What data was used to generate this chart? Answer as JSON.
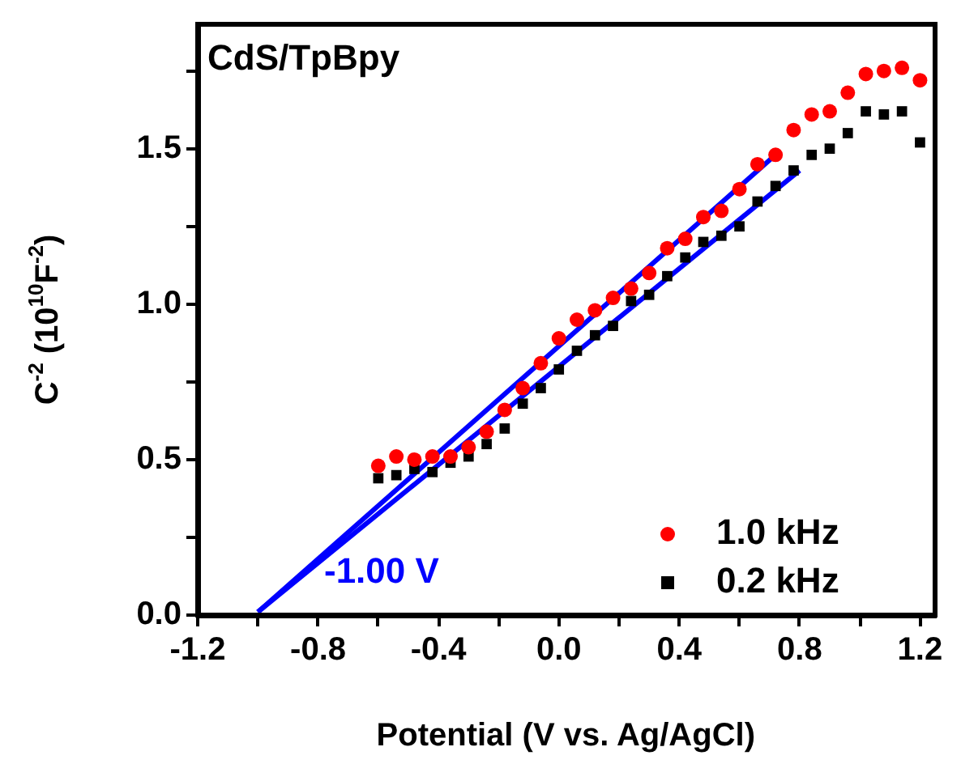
{
  "chart_data": {
    "type": "scatter",
    "title": "CdS/TpBpy",
    "xlabel": "Potential (V vs. Ag/AgCl)",
    "ylabel": "C$^{-2}$ (10$^{10}$F$^{-2}$)",
    "annotations": [
      "-1.00 V"
    ],
    "x": [
      -0.6,
      -0.54,
      -0.48,
      -0.42,
      -0.36,
      -0.3,
      -0.24,
      -0.18,
      -0.12,
      -0.06,
      0.0,
      0.06,
      0.12,
      0.18,
      0.24,
      0.3,
      0.36,
      0.42,
      0.48,
      0.54,
      0.6,
      0.66,
      0.72,
      0.78,
      0.84,
      0.9,
      0.96,
      1.02,
      1.08,
      1.14,
      1.2
    ],
    "series": [
      {
        "name": "1.0 kHz",
        "color": "#ff0000",
        "marker": "circle",
        "values": [
          0.48,
          0.51,
          0.5,
          0.51,
          0.51,
          0.54,
          0.59,
          0.66,
          0.73,
          0.81,
          0.89,
          0.95,
          0.98,
          1.02,
          1.05,
          1.1,
          1.18,
          1.21,
          1.28,
          1.3,
          1.37,
          1.45,
          1.48,
          1.56,
          1.61,
          1.62,
          1.68,
          1.74,
          1.75,
          1.76,
          1.72
        ]
      },
      {
        "name": "0.2 kHz",
        "color": "#000000",
        "marker": "square",
        "values": [
          0.44,
          0.45,
          0.47,
          0.46,
          0.49,
          0.51,
          0.55,
          0.6,
          0.68,
          0.73,
          0.79,
          0.85,
          0.9,
          0.93,
          1.01,
          1.03,
          1.09,
          1.15,
          1.2,
          1.22,
          1.25,
          1.33,
          1.38,
          1.43,
          1.48,
          1.5,
          1.55,
          1.62,
          1.61,
          1.62,
          1.52
        ]
      },
      {
        "type": "line",
        "color": "#0000ff",
        "marker": "none",
        "x": [
          -1.0,
          0.72
        ],
        "values": [
          0.01,
          1.48
        ]
      },
      {
        "type": "line",
        "color": "#0000ff",
        "marker": "none",
        "x": [
          -1.0,
          0.8
        ],
        "values": [
          0.01,
          1.43
        ]
      }
    ],
    "xlim": [
      -1.2,
      1.25
    ],
    "ylim": [
      0,
      1.9
    ],
    "xticks": [
      -1.2,
      {
        "value": -1.0,
        "label": null
      },
      -0.8,
      {
        "value": -0.6,
        "label": null
      },
      -0.4,
      {
        "value": -0.2,
        "label": null
      },
      {
        "value": 0,
        "label": "0.0"
      },
      {
        "value": 0.2,
        "label": null
      },
      0.4,
      {
        "value": 0.6,
        "label": null
      },
      0.8,
      {
        "value": 1.0,
        "label": null
      },
      1.2
    ],
    "yticks": [
      {
        "value": 0,
        "label": "0.0"
      },
      {
        "value": 0.25,
        "label": null
      },
      0.5,
      {
        "value": 0.75,
        "label": null
      },
      {
        "value": 1,
        "label": "1.0"
      },
      {
        "value": 1.25,
        "label": null
      },
      1.5,
      {
        "value": 1.75,
        "label": null
      }
    ],
    "grid": false,
    "legend": "bottom right"
  }
}
